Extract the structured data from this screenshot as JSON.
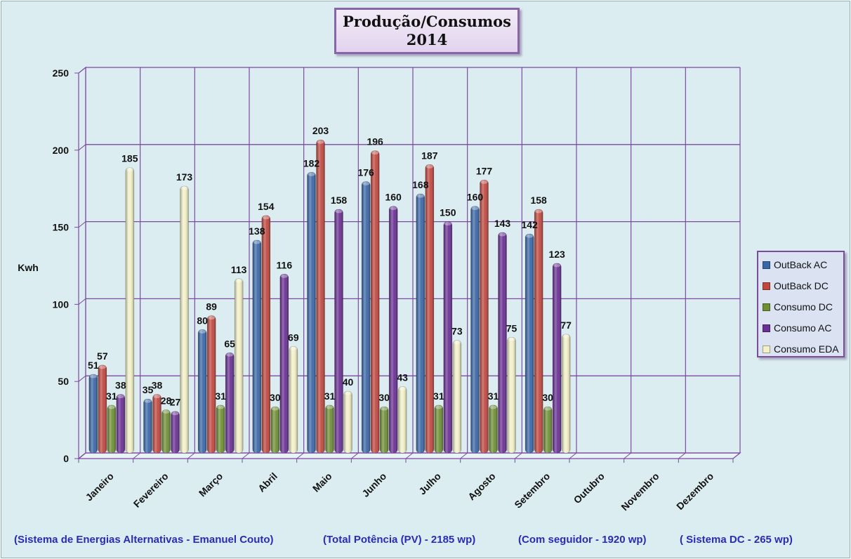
{
  "chart_data": {
    "type": "bar",
    "title": "Produção/Consumos",
    "subtitle": "2014",
    "ylabel": "Kwh",
    "xlabel": "",
    "ylim": [
      0,
      250
    ],
    "yticks": [
      0,
      50,
      100,
      150,
      200,
      250
    ],
    "grid": true,
    "legend_position": "right",
    "categories": [
      "Janeiro",
      "Fevereiro",
      "Março",
      "Abril",
      "Maio",
      "Junho",
      "Julho",
      "Agosto",
      "Setembro",
      "Outubro",
      "Novembro",
      "Dezembro"
    ],
    "series": [
      {
        "name": "OutBack AC",
        "color": "#3a67a8",
        "values": [
          51,
          35,
          80,
          138,
          182,
          176,
          168,
          160,
          142,
          null,
          null,
          null
        ]
      },
      {
        "name": "OutBack DC",
        "color": "#c0473f",
        "values": [
          57,
          38,
          89,
          154,
          203,
          196,
          187,
          177,
          158,
          null,
          null,
          null
        ]
      },
      {
        "name": "Consumo DC",
        "color": "#6f8f34",
        "values": [
          31,
          28,
          31,
          30,
          31,
          30,
          31,
          31,
          30,
          null,
          null,
          null
        ]
      },
      {
        "name": "Consumo AC",
        "color": "#6a2f94",
        "values": [
          38,
          27,
          65,
          116,
          158,
          160,
          150,
          143,
          123,
          null,
          null,
          null
        ]
      },
      {
        "name": "Consumo EDA",
        "color": "#f2f0c6",
        "values": [
          185,
          173,
          113,
          69,
          40,
          43,
          73,
          75,
          77,
          null,
          null,
          null
        ]
      }
    ]
  },
  "footer": {
    "system": "(Sistema de Energias Alternativas - Emanuel Couto)",
    "total_power": "(Total Potência (PV) - 2185 wp)",
    "tracker": "(Com seguidor - 1920 wp)",
    "dc_system": "( Sistema DC - 265 wp)"
  }
}
